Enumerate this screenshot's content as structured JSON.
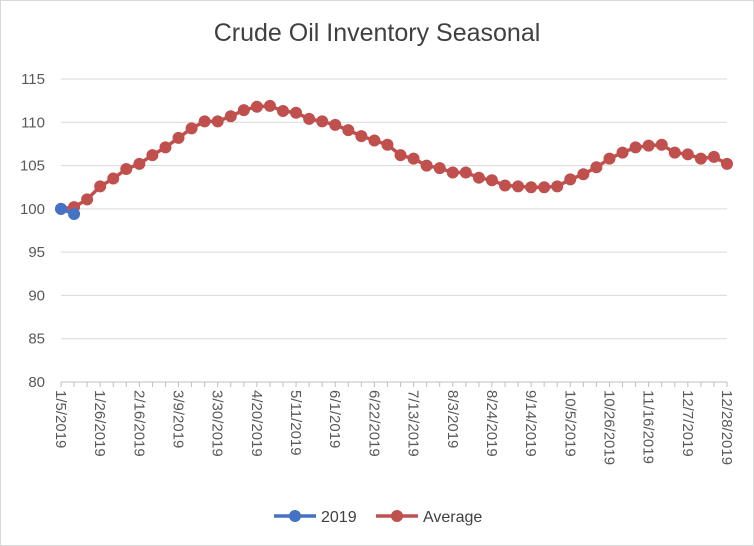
{
  "chart_data": {
    "type": "line",
    "title": "Crude Oil Inventory Seasonal",
    "xlabel": "",
    "ylabel": "",
    "ylim": [
      80,
      115
    ],
    "yticks": [
      80,
      85,
      90,
      95,
      100,
      105,
      110,
      115
    ],
    "grid": true,
    "legend_position": "bottom",
    "x_tick_labels": [
      "1/5/2019",
      "1/26/2019",
      "2/16/2019",
      "3/9/2019",
      "3/30/2019",
      "4/20/2019",
      "5/11/2019",
      "6/1/2019",
      "6/22/2019",
      "7/13/2019",
      "8/3/2019",
      "8/24/2019",
      "9/14/2019",
      "10/5/2019",
      "10/26/2019",
      "11/16/2019",
      "12/7/2019",
      "12/28/2019"
    ],
    "n_points": 52,
    "series": [
      {
        "name": "2019",
        "color": "#4472c4",
        "values": [
          100.0,
          99.4
        ]
      },
      {
        "name": "Average",
        "color": "#c0504d",
        "values": [
          100.0,
          100.2,
          101.1,
          102.6,
          103.5,
          104.6,
          105.2,
          106.2,
          107.1,
          108.2,
          109.3,
          110.1,
          110.1,
          110.7,
          111.4,
          111.8,
          111.9,
          111.3,
          111.1,
          110.4,
          110.1,
          109.7,
          109.1,
          108.4,
          107.9,
          107.4,
          106.2,
          105.8,
          105.0,
          104.7,
          104.2,
          104.2,
          103.6,
          103.3,
          102.7,
          102.6,
          102.5,
          102.5,
          102.6,
          103.4,
          104.0,
          104.8,
          105.8,
          106.5,
          107.1,
          107.3,
          107.4,
          106.5,
          106.3,
          105.8,
          106.0,
          105.2
        ]
      }
    ]
  }
}
